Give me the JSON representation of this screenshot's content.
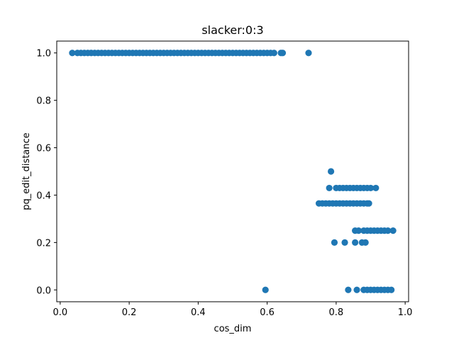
{
  "chart_data": {
    "type": "scatter",
    "title": "slacker:0:3",
    "xlabel": "cos_dim",
    "ylabel": "pq_edit_distance",
    "xlim": [
      -0.01,
      1.01
    ],
    "ylim": [
      -0.05,
      1.05
    ],
    "x_ticks": [
      0.0,
      0.2,
      0.4,
      0.6,
      0.8,
      1.0
    ],
    "x_tick_labels": [
      "0.0",
      "0.2",
      "0.4",
      "0.6",
      "0.8",
      "1.0"
    ],
    "y_ticks": [
      0.0,
      0.2,
      0.4,
      0.6,
      0.8,
      1.0
    ],
    "y_tick_labels": [
      "0.0",
      "0.2",
      "0.4",
      "0.6",
      "0.8",
      "1.0"
    ],
    "grid": false,
    "marker_color": "#1f77b4",
    "series": [
      {
        "points": [
          [
            0.035,
            1.0
          ],
          [
            0.05,
            1.0
          ],
          [
            0.06,
            1.0
          ],
          [
            0.07,
            1.0
          ],
          [
            0.08,
            1.0
          ],
          [
            0.09,
            1.0
          ],
          [
            0.1,
            1.0
          ],
          [
            0.11,
            1.0
          ],
          [
            0.12,
            1.0
          ],
          [
            0.13,
            1.0
          ],
          [
            0.14,
            1.0
          ],
          [
            0.15,
            1.0
          ],
          [
            0.16,
            1.0
          ],
          [
            0.17,
            1.0
          ],
          [
            0.18,
            1.0
          ],
          [
            0.19,
            1.0
          ],
          [
            0.2,
            1.0
          ],
          [
            0.21,
            1.0
          ],
          [
            0.22,
            1.0
          ],
          [
            0.23,
            1.0
          ],
          [
            0.24,
            1.0
          ],
          [
            0.25,
            1.0
          ],
          [
            0.26,
            1.0
          ],
          [
            0.27,
            1.0
          ],
          [
            0.28,
            1.0
          ],
          [
            0.29,
            1.0
          ],
          [
            0.3,
            1.0
          ],
          [
            0.31,
            1.0
          ],
          [
            0.32,
            1.0
          ],
          [
            0.33,
            1.0
          ],
          [
            0.34,
            1.0
          ],
          [
            0.35,
            1.0
          ],
          [
            0.36,
            1.0
          ],
          [
            0.37,
            1.0
          ],
          [
            0.38,
            1.0
          ],
          [
            0.39,
            1.0
          ],
          [
            0.4,
            1.0
          ],
          [
            0.41,
            1.0
          ],
          [
            0.42,
            1.0
          ],
          [
            0.43,
            1.0
          ],
          [
            0.44,
            1.0
          ],
          [
            0.45,
            1.0
          ],
          [
            0.46,
            1.0
          ],
          [
            0.47,
            1.0
          ],
          [
            0.48,
            1.0
          ],
          [
            0.49,
            1.0
          ],
          [
            0.5,
            1.0
          ],
          [
            0.51,
            1.0
          ],
          [
            0.52,
            1.0
          ],
          [
            0.53,
            1.0
          ],
          [
            0.54,
            1.0
          ],
          [
            0.55,
            1.0
          ],
          [
            0.56,
            1.0
          ],
          [
            0.57,
            1.0
          ],
          [
            0.58,
            1.0
          ],
          [
            0.59,
            1.0
          ],
          [
            0.6,
            1.0
          ],
          [
            0.61,
            1.0
          ],
          [
            0.62,
            1.0
          ],
          [
            0.64,
            1.0
          ],
          [
            0.645,
            1.0
          ],
          [
            0.72,
            1.0
          ],
          [
            0.785,
            0.5
          ],
          [
            0.78,
            0.43
          ],
          [
            0.8,
            0.43
          ],
          [
            0.81,
            0.43
          ],
          [
            0.82,
            0.43
          ],
          [
            0.83,
            0.43
          ],
          [
            0.84,
            0.43
          ],
          [
            0.85,
            0.43
          ],
          [
            0.86,
            0.43
          ],
          [
            0.87,
            0.43
          ],
          [
            0.88,
            0.43
          ],
          [
            0.89,
            0.43
          ],
          [
            0.9,
            0.43
          ],
          [
            0.915,
            0.43
          ],
          [
            0.75,
            0.365
          ],
          [
            0.76,
            0.365
          ],
          [
            0.77,
            0.365
          ],
          [
            0.78,
            0.365
          ],
          [
            0.79,
            0.365
          ],
          [
            0.8,
            0.365
          ],
          [
            0.81,
            0.365
          ],
          [
            0.82,
            0.365
          ],
          [
            0.83,
            0.365
          ],
          [
            0.84,
            0.365
          ],
          [
            0.85,
            0.365
          ],
          [
            0.86,
            0.365
          ],
          [
            0.87,
            0.365
          ],
          [
            0.88,
            0.365
          ],
          [
            0.89,
            0.365
          ],
          [
            0.895,
            0.365
          ],
          [
            0.855,
            0.25
          ],
          [
            0.865,
            0.25
          ],
          [
            0.88,
            0.25
          ],
          [
            0.89,
            0.25
          ],
          [
            0.9,
            0.25
          ],
          [
            0.91,
            0.25
          ],
          [
            0.92,
            0.25
          ],
          [
            0.93,
            0.25
          ],
          [
            0.94,
            0.25
          ],
          [
            0.95,
            0.25
          ],
          [
            0.965,
            0.25
          ],
          [
            0.795,
            0.2
          ],
          [
            0.825,
            0.2
          ],
          [
            0.855,
            0.2
          ],
          [
            0.875,
            0.2
          ],
          [
            0.885,
            0.2
          ],
          [
            0.595,
            0.0
          ],
          [
            0.835,
            0.0
          ],
          [
            0.86,
            0.0
          ],
          [
            0.88,
            0.0
          ],
          [
            0.89,
            0.0
          ],
          [
            0.9,
            0.0
          ],
          [
            0.91,
            0.0
          ],
          [
            0.92,
            0.0
          ],
          [
            0.93,
            0.0
          ],
          [
            0.94,
            0.0
          ],
          [
            0.95,
            0.0
          ],
          [
            0.96,
            0.0
          ]
        ]
      }
    ]
  }
}
